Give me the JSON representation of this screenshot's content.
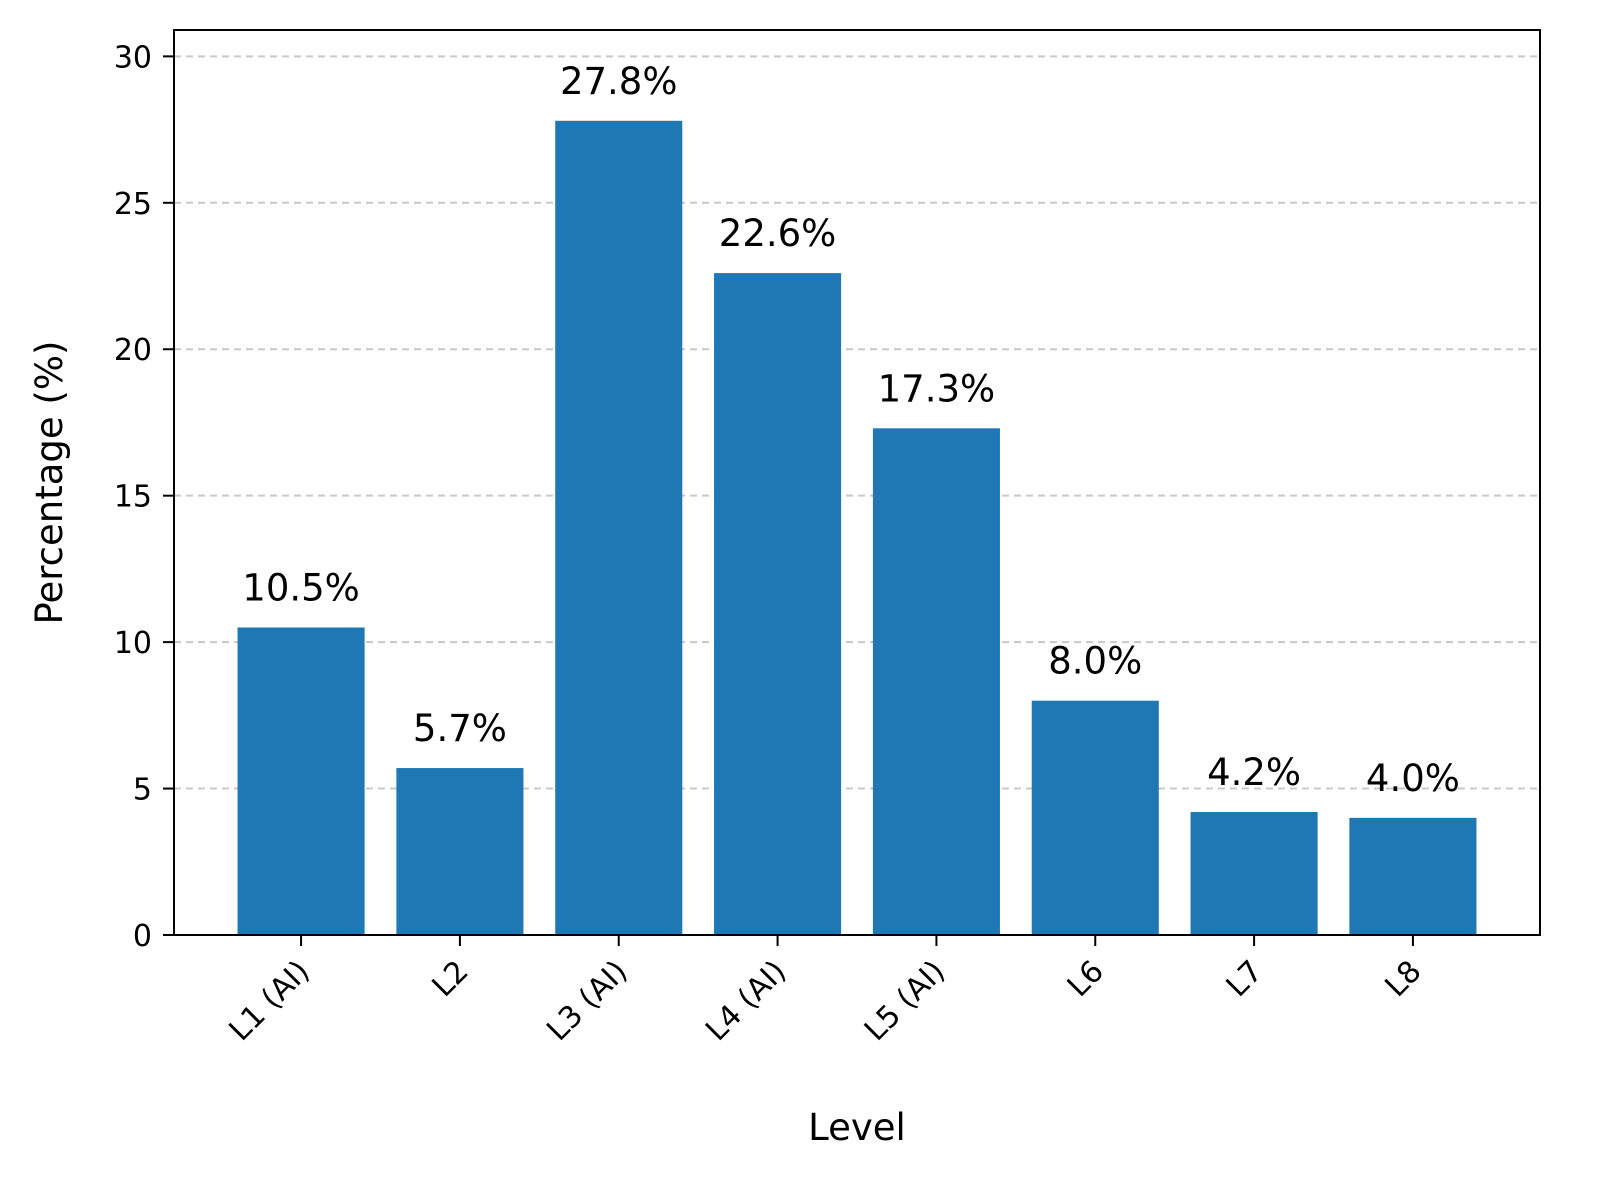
{
  "chart_data": {
    "type": "bar",
    "categories": [
      "L1 (AI)",
      "L2",
      "L3 (AI)",
      "L4 (AI)",
      "L5 (AI)",
      "L6",
      "L7",
      "L8"
    ],
    "values": [
      10.5,
      5.7,
      27.8,
      22.6,
      17.3,
      8.0,
      4.2,
      4.0
    ],
    "data_labels": [
      "10.5%",
      "5.7%",
      "27.8%",
      "22.6%",
      "17.3%",
      "8.0%",
      "4.2%",
      "4.0%"
    ],
    "xlabel": "Level",
    "ylabel": "Percentage (%)",
    "ylim": [
      0,
      30.9
    ],
    "yticks": [
      0,
      5,
      10,
      15,
      20,
      25,
      30
    ],
    "grid": "y, dashed",
    "bar_color": "#1f77b4",
    "grid_color": "#c8c8c8"
  }
}
